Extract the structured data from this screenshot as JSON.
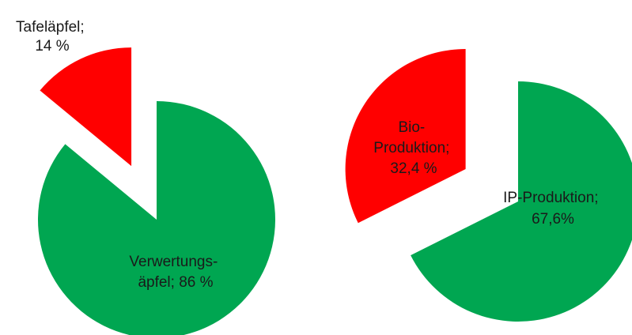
{
  "colors": {
    "red": "#ff0000",
    "green": "#00a651"
  },
  "chart_data": [
    {
      "type": "pie",
      "slices": [
        {
          "name": "Tafeläpfel",
          "value": 14,
          "color": "red",
          "label_lines": [
            "Tafeläpfel;",
            "14 %"
          ]
        },
        {
          "name": "Verwertungsäpfel",
          "value": 86,
          "color": "green",
          "label_lines": [
            "Verwertungs-",
            "äpfel; 86 %"
          ]
        }
      ]
    },
    {
      "type": "pie",
      "slices": [
        {
          "name": "Bio-Produktion",
          "value": 32.4,
          "color": "red",
          "label_lines": [
            "Bio-",
            "Produktion;",
            "32,4 %"
          ]
        },
        {
          "name": "IP-Produktion",
          "value": 67.6,
          "color": "green",
          "label_lines": [
            "IP-Produktion;",
            "67,6%"
          ]
        }
      ]
    }
  ]
}
